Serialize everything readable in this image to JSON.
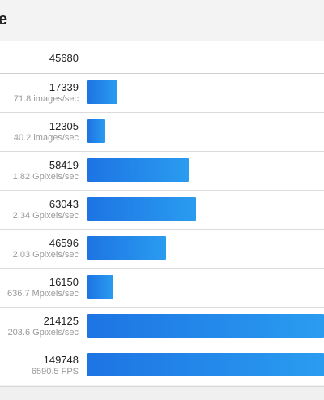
{
  "header": {
    "title_fragment": "e"
  },
  "overall": {
    "score": "45680"
  },
  "rows": [
    {
      "score": "17339",
      "rate": "71.8 images/sec",
      "bar_fraction": 0.126
    },
    {
      "score": "12305",
      "rate": "40.2 images/sec",
      "bar_fraction": 0.077
    },
    {
      "score": "58419",
      "rate": "1.82 Gpixels/sec",
      "bar_fraction": 0.428
    },
    {
      "score": "63043",
      "rate": "2.34 Gpixels/sec",
      "bar_fraction": 0.459
    },
    {
      "score": "46596",
      "rate": "2.03 Gpixels/sec",
      "bar_fraction": 0.332
    },
    {
      "score": "16150",
      "rate": "636.7 Mpixels/sec",
      "bar_fraction": 0.11
    },
    {
      "score": "214125",
      "rate": "203.6 Gpixels/sec",
      "bar_fraction": 1.0
    },
    {
      "score": "149748",
      "rate": "6590.5 FPS",
      "bar_fraction": 1.0
    }
  ],
  "colors": {
    "bar_start": "#1d74e3",
    "bar_end": "#2a9cf0"
  }
}
